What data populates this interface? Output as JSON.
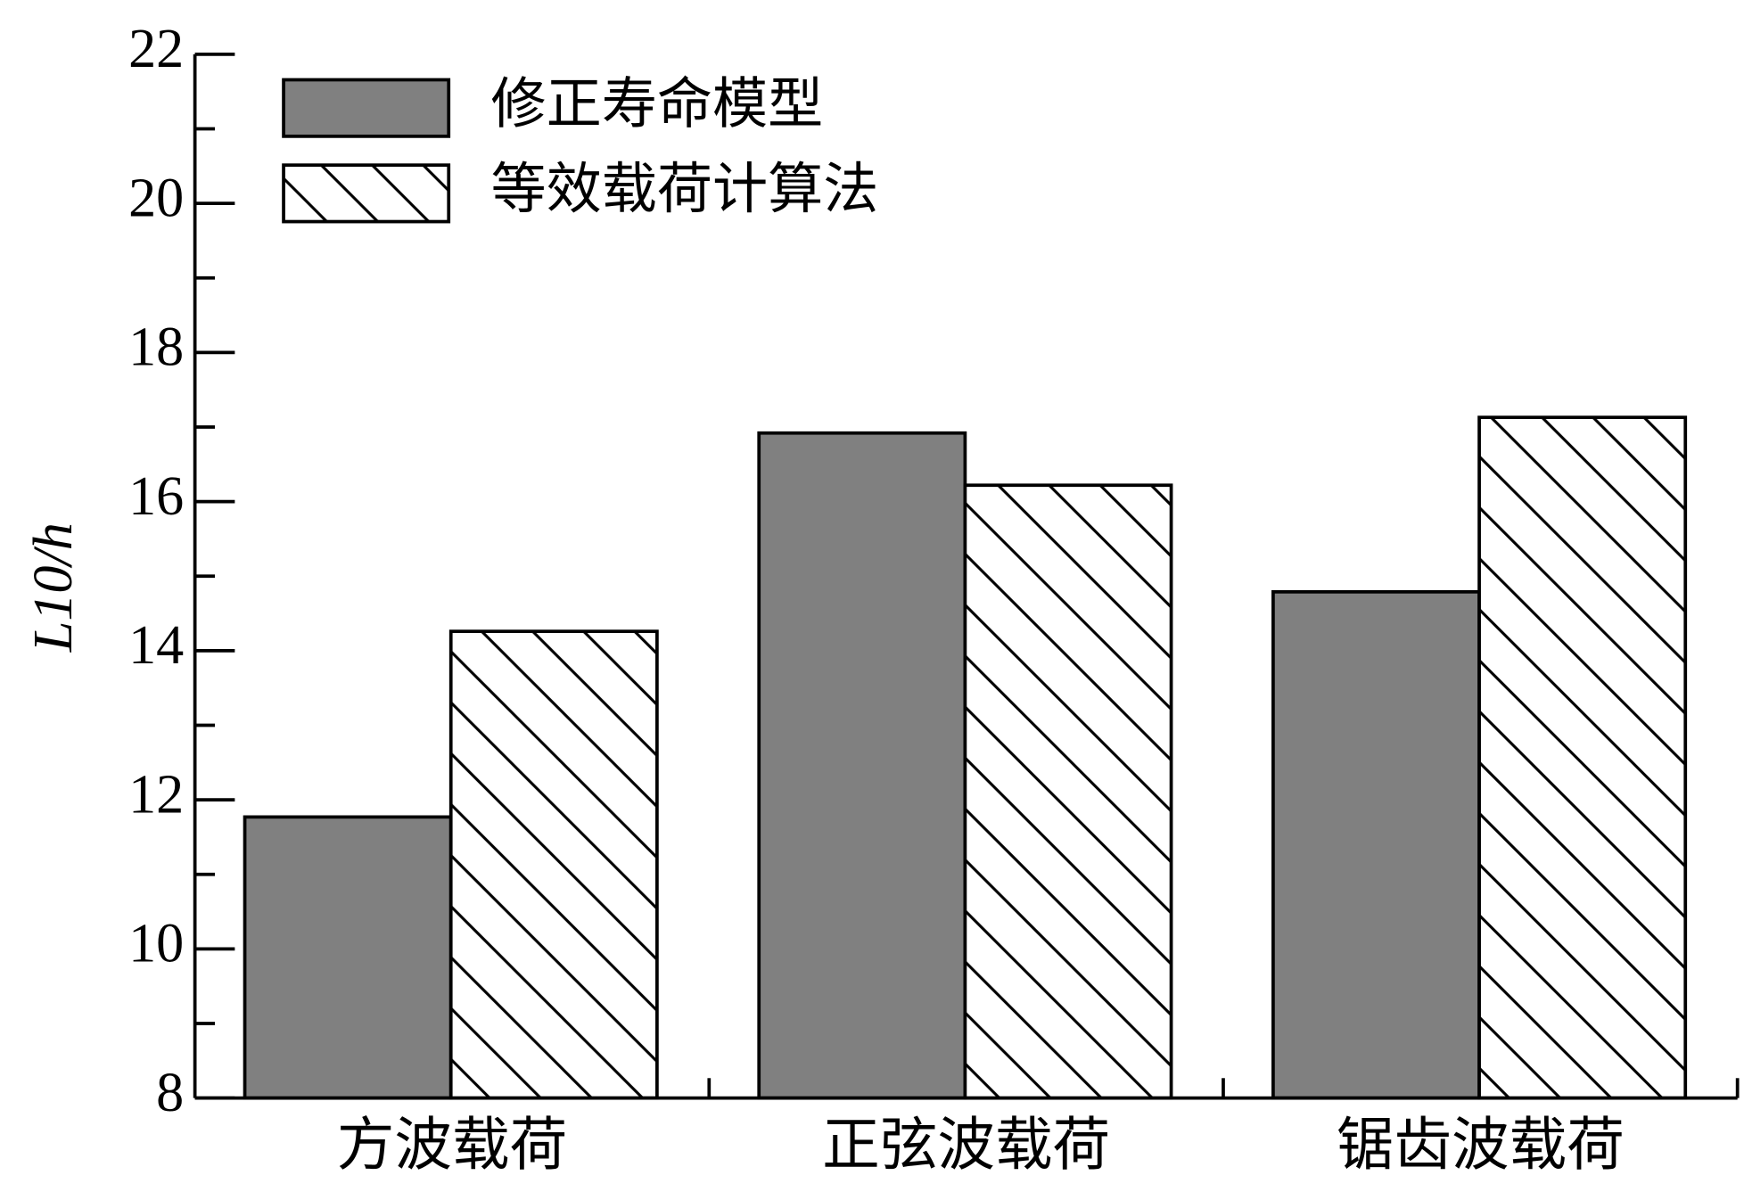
{
  "chart_data": {
    "type": "bar",
    "ylabel": "L10/h",
    "categories": [
      "方波载荷",
      "正弦波载荷",
      "锯齿波载荷"
    ],
    "series": [
      {
        "name": "修正寿命模型",
        "color": "#808080",
        "values": [
          11.77,
          16.92,
          14.79
        ]
      },
      {
        "name": "等效载荷计算法",
        "color": "#ffffff",
        "hatch": true,
        "values": [
          14.26,
          16.22,
          17.13
        ]
      }
    ],
    "ylim": [
      8,
      22
    ],
    "yticks": [
      8,
      10,
      12,
      14,
      16,
      18,
      20,
      22
    ],
    "legend": "upper left"
  }
}
